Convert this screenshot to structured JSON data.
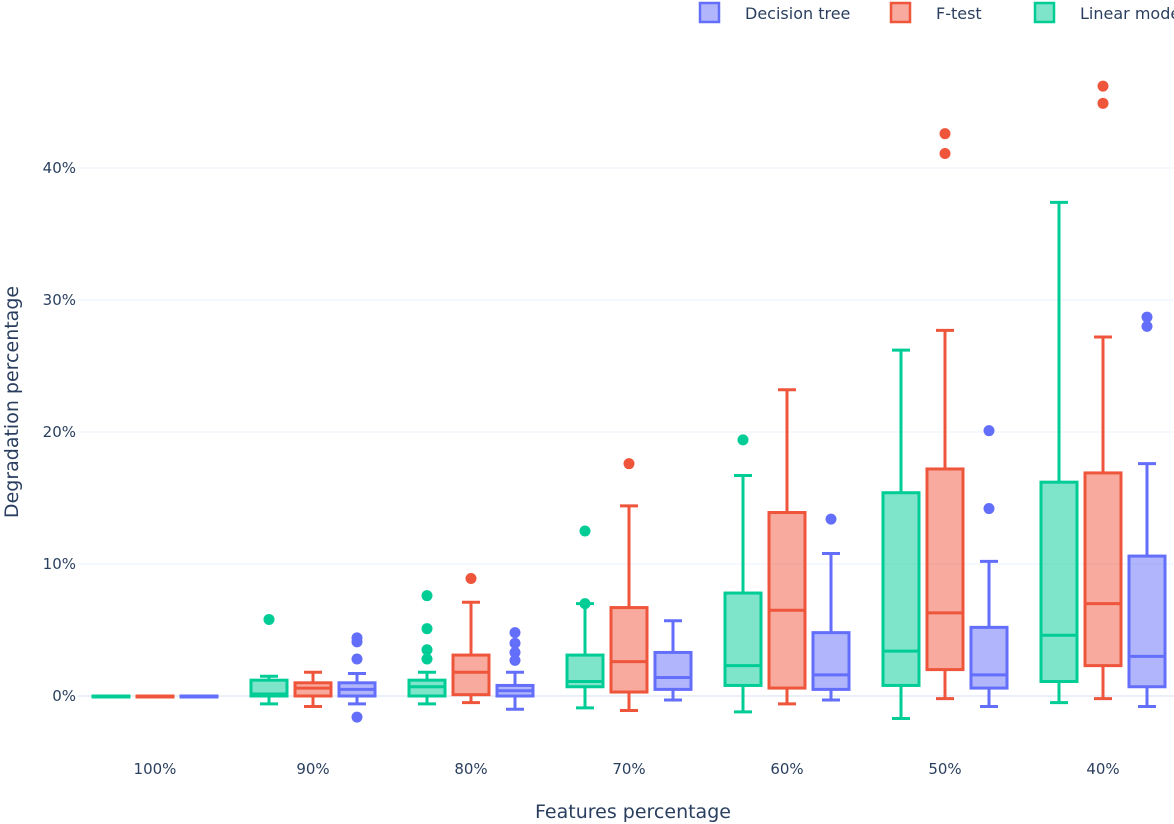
{
  "chart_data": {
    "type": "box",
    "xlabel": "Features percentage",
    "ylabel": "Degradation percentage",
    "categories": [
      "100%",
      "90%",
      "80%",
      "70%",
      "60%",
      "50%",
      "40%"
    ],
    "ylim": [
      -3,
      48
    ],
    "yticks": [
      0,
      10,
      20,
      30,
      40
    ],
    "ytick_labels": [
      "0%",
      "10%",
      "20%",
      "30%",
      "40%"
    ],
    "grid": true,
    "legend_position": "top-right",
    "legend_order": [
      "Decision tree",
      "F-test",
      "Linear model"
    ],
    "series": [
      {
        "name": "Linear model",
        "color": "#00cc96",
        "boxes": [
          {
            "lower": 0,
            "q1": 0,
            "median": 0,
            "q3": 0,
            "upper": 0,
            "outliers": []
          },
          {
            "lower": -0.6,
            "q1": 0,
            "median": 0.15,
            "q3": 1.2,
            "upper": 1.5,
            "outliers": [
              5.8
            ]
          },
          {
            "lower": -0.6,
            "q1": 0,
            "median": 0.7,
            "q3": 1.2,
            "upper": 1.8,
            "outliers": [
              7.6,
              5.1,
              3.5,
              2.8
            ]
          },
          {
            "lower": -0.9,
            "q1": 0.7,
            "median": 1.1,
            "q3": 3.1,
            "upper": 7.0,
            "outliers": [
              12.5,
              7.0
            ]
          },
          {
            "lower": -1.2,
            "q1": 0.8,
            "median": 2.3,
            "q3": 7.8,
            "upper": 16.7,
            "outliers": [
              19.4
            ]
          },
          {
            "lower": -1.7,
            "q1": 0.8,
            "median": 3.4,
            "q3": 15.4,
            "upper": 26.2,
            "outliers": []
          },
          {
            "lower": -0.5,
            "q1": 1.1,
            "median": 4.6,
            "q3": 16.2,
            "upper": 37.4,
            "outliers": []
          }
        ]
      },
      {
        "name": "F-test",
        "color": "#EF553B",
        "boxes": [
          {
            "lower": 0,
            "q1": 0,
            "median": 0,
            "q3": 0,
            "upper": 0,
            "outliers": []
          },
          {
            "lower": -0.8,
            "q1": 0,
            "median": 0.6,
            "q3": 1.0,
            "upper": 1.8,
            "outliers": []
          },
          {
            "lower": -0.5,
            "q1": 0.1,
            "median": 1.8,
            "q3": 3.1,
            "upper": 7.1,
            "outliers": [
              8.9
            ]
          },
          {
            "lower": -1.1,
            "q1": 0.3,
            "median": 2.6,
            "q3": 6.7,
            "upper": 14.4,
            "outliers": [
              17.6
            ]
          },
          {
            "lower": -0.6,
            "q1": 0.6,
            "median": 6.5,
            "q3": 13.9,
            "upper": 23.2,
            "outliers": []
          },
          {
            "lower": -0.2,
            "q1": 2.0,
            "median": 6.3,
            "q3": 17.2,
            "upper": 27.7,
            "outliers": [
              42.6,
              41.1
            ]
          },
          {
            "lower": -0.2,
            "q1": 2.3,
            "median": 7.0,
            "q3": 16.9,
            "upper": 27.2,
            "outliers": [
              46.2,
              44.9
            ]
          }
        ]
      },
      {
        "name": "Decision tree",
        "color": "#636efa",
        "boxes": [
          {
            "lower": 0,
            "q1": 0,
            "median": 0,
            "q3": 0,
            "upper": 0,
            "outliers": []
          },
          {
            "lower": -0.6,
            "q1": 0,
            "median": 0.5,
            "q3": 1.0,
            "upper": 1.7,
            "outliers": [
              4.4,
              4.1,
              2.8,
              -1.6
            ]
          },
          {
            "lower": -1.0,
            "q1": 0,
            "median": 0.4,
            "q3": 0.8,
            "upper": 1.8,
            "outliers": [
              4.8,
              4.0,
              3.3,
              2.7
            ]
          },
          {
            "lower": -0.3,
            "q1": 0.5,
            "median": 1.4,
            "q3": 3.3,
            "upper": 5.7,
            "outliers": []
          },
          {
            "lower": -0.3,
            "q1": 0.5,
            "median": 1.6,
            "q3": 4.8,
            "upper": 10.8,
            "outliers": [
              13.4
            ]
          },
          {
            "lower": -0.8,
            "q1": 0.6,
            "median": 1.6,
            "q3": 5.2,
            "upper": 10.2,
            "outliers": [
              20.1,
              14.2
            ]
          },
          {
            "lower": -0.8,
            "q1": 0.7,
            "median": 3.0,
            "q3": 10.6,
            "upper": 17.6,
            "outliers": [
              28.7,
              28.0
            ]
          }
        ]
      }
    ]
  }
}
